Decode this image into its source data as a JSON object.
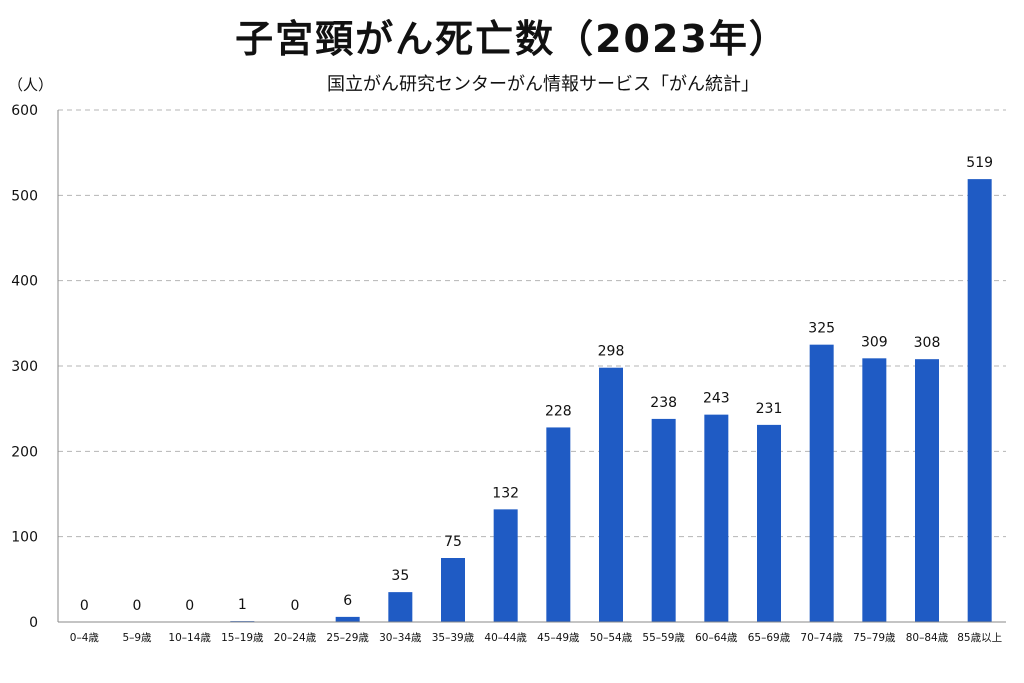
{
  "chart_data": {
    "type": "bar",
    "title": "子宮頸がん死亡数（2023年）",
    "subtitle": "国立がん研究センターがん情報サービス「がん統計」",
    "ylabel": "（人）",
    "xlabel": "",
    "ylim": [
      0,
      600
    ],
    "yticks": [
      0,
      100,
      200,
      300,
      400,
      500,
      600
    ],
    "grid": true,
    "bar_color": "#1f5bc4",
    "categories": [
      "0–4歳",
      "5–9歳",
      "10–14歳",
      "15–19歳",
      "20–24歳",
      "25–29歳",
      "30–34歳",
      "35–39歳",
      "40–44歳",
      "45–49歳",
      "50–54歳",
      "55–59歳",
      "60–64歳",
      "65–69歳",
      "70–74歳",
      "75–79歳",
      "80–84歳",
      "85歳以上"
    ],
    "values": [
      0,
      0,
      0,
      1,
      0,
      6,
      35,
      75,
      132,
      228,
      298,
      238,
      243,
      231,
      325,
      309,
      308,
      519
    ]
  }
}
